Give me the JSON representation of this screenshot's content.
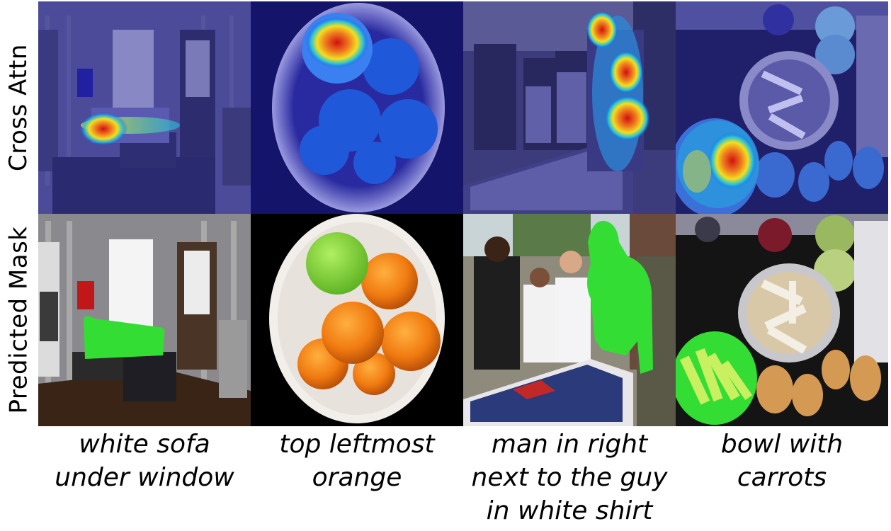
{
  "row_labels": [
    "Cross Attn",
    "Predicted Mask"
  ],
  "columns": [
    {
      "caption_lines": [
        "white sofa",
        "under window"
      ]
    },
    {
      "caption_lines": [
        "top leftmost",
        "orange"
      ]
    },
    {
      "caption_lines": [
        "man in right",
        "next to the guy",
        "in white shirt"
      ]
    },
    {
      "caption_lines": [
        "bowl with",
        "carrots"
      ]
    }
  ],
  "colors": {
    "attention_tint": "#1a1a9a",
    "heat_high": "#d01010",
    "heat_mid": "#f0e020",
    "heat_low": "#20c0e0",
    "mask_green": "#33dd33"
  }
}
